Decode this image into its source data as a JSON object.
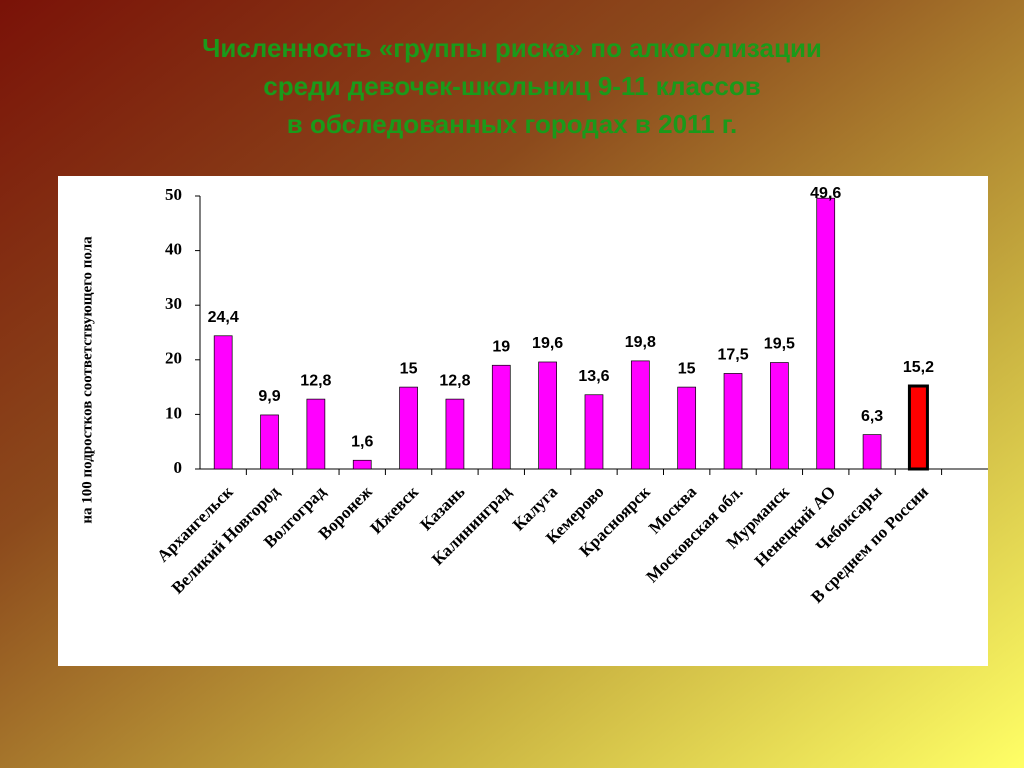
{
  "chart_data": {
    "type": "bar",
    "title": [
      "Численность «группы риска» по алкоголизации",
      "среди девочек-школьниц 9-11 классов",
      "в обследованных городах в 2011 г."
    ],
    "y_label": "на 100 подростков соответствующего пола",
    "categories": [
      "Архангельск",
      "Великий Новгород",
      "Волгоград",
      "Воронеж",
      "Ижевск",
      "Казань",
      "Калининград",
      "Калуга",
      "Кемерово",
      "Красноярск",
      "Москва",
      "Московская обл.",
      "Мурманск",
      "Ненецкий АО",
      "Чебоксары",
      "В среднем по России"
    ],
    "values": [
      24.4,
      9.9,
      12.8,
      1.6,
      15,
      12.8,
      19,
      19.6,
      13.6,
      19.8,
      15,
      17.5,
      19.5,
      49.6,
      6.3,
      15.2
    ],
    "value_labels": [
      "24,4",
      "9,9",
      "12,8",
      "1,6",
      "15",
      "12,8",
      "19",
      "19,6",
      "13,6",
      "19,8",
      "15",
      "17,5",
      "19,5",
      "49,6",
      "6,3",
      "15,2"
    ],
    "colors": [
      "#ff00ff",
      "#ff00ff",
      "#ff00ff",
      "#ff00ff",
      "#ff00ff",
      "#ff00ff",
      "#ff00ff",
      "#ff00ff",
      "#ff00ff",
      "#ff00ff",
      "#ff00ff",
      "#ff00ff",
      "#ff00ff",
      "#ff00ff",
      "#ff00ff",
      "#ff0000"
    ],
    "ylim": [
      0,
      50
    ],
    "yticks": [
      0,
      10,
      20,
      30,
      40,
      50
    ],
    "grid": false
  }
}
